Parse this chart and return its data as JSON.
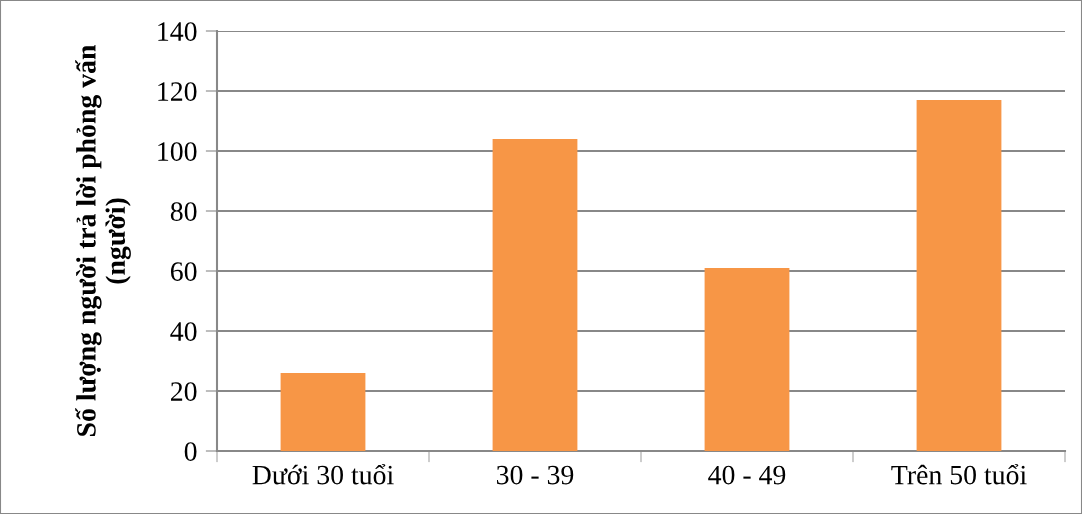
{
  "chart_data": {
    "type": "bar",
    "ylabel": "Số lượng người trả lời phỏng vấn (người)",
    "categories": [
      "Dưới 30 tuổi",
      "30 - 39",
      "40 - 49",
      "Trên 50 tuổi"
    ],
    "values": [
      26,
      104,
      61,
      117
    ],
    "color": "#f79646",
    "ylim": [
      0,
      140
    ],
    "yticks": [
      0,
      20,
      40,
      60,
      80,
      100,
      120,
      140
    ],
    "grid": "y",
    "legend": false
  }
}
